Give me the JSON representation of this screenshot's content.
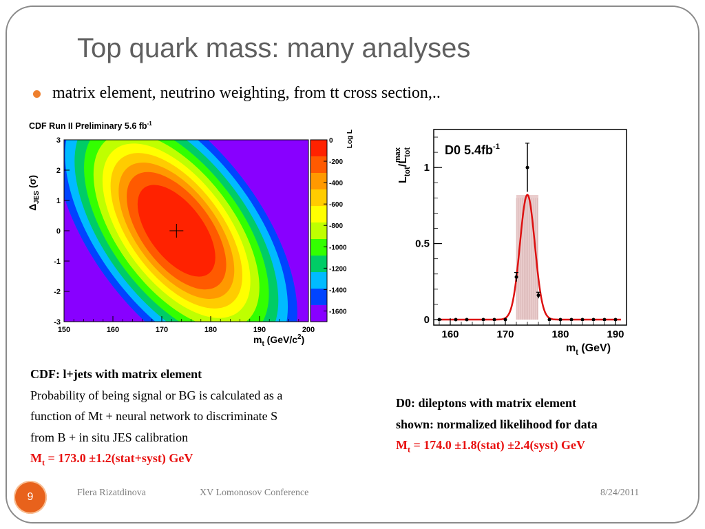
{
  "slide": {
    "title": "Top quark mass: many analyses",
    "bullet": "matrix element, neutrino weighting, from tt cross section,..",
    "page_number": "9",
    "footer_author": "Flera Rizatdinova",
    "footer_conference": "XV Lomonosov Conference",
    "footer_date": "8/24/2011"
  },
  "cdf": {
    "caption_heading": "CDF: l+jets with matrix element",
    "caption_line1": "Probability of being signal or BG is calculated as a",
    "caption_line2": "function of Mt + neural network to discriminate S",
    "caption_line3": "from B + in situ JES calibration",
    "result_prefix": "M",
    "result_sub": "t",
    "result_rest": " = 173.0 ±1.2(stat+syst) GeV"
  },
  "d0": {
    "caption_line1": "D0: dileptons with matrix element",
    "caption_line2": "shown: normalized likelihood for data",
    "result_prefix": "M",
    "result_sub": "t",
    "result_rest": " = 174.0 ±1.8(stat) ±2.4(syst) GeV"
  },
  "chart_data": [
    {
      "type": "heatmap",
      "title": "CDF Run II Preliminary 5.6 fb",
      "title_sup": "-1",
      "xlabel_main": "m",
      "xlabel_sub": "t",
      "xlabel_rest": " (GeV/c",
      "xlabel_sup": "2",
      "xlabel_end": ")",
      "ylabel_main": "Δ",
      "ylabel_sub": "JES",
      "ylabel_rest": " (σ)",
      "xlim": [
        150,
        200
      ],
      "ylim": [
        -3,
        3
      ],
      "x_ticks": [
        "150",
        "160",
        "170",
        "180",
        "190",
        "200"
      ],
      "y_ticks": [
        "-3",
        "-2",
        "-1",
        "0",
        "1",
        "2",
        "3"
      ],
      "colorbar_label": "Log L",
      "colorbar_range": [
        -1700,
        0
      ],
      "colorbar_ticks": [
        "0",
        "-200",
        "-400",
        "-600",
        "-800",
        "-1000",
        "-1200",
        "-1400",
        "-1600"
      ],
      "marker": {
        "x": 173.0,
        "y": 0.0
      },
      "colors": {
        "red": "#ff2200",
        "orange_red": "#ff5a00",
        "orange": "#ff9900",
        "yellow_orange": "#ffcc00",
        "yellow": "#ffff00",
        "lime": "#bfff00",
        "green": "#33ff00",
        "teal": "#00cc66",
        "cyan": "#00bbff",
        "blue": "#0044ff",
        "violet": "#8800ff"
      }
    },
    {
      "type": "line",
      "title": "D0 5.4fb",
      "title_sup": "-1",
      "xlabel_main": "m",
      "xlabel_sub": "t",
      "xlabel_rest": " (GeV)",
      "ylabel_main": "L",
      "ylabel_sub1": "tot",
      "ylabel_mid": "/L",
      "ylabel_sub2": "tot",
      "ylabel_sup": "max",
      "xlim": [
        157,
        192
      ],
      "ylim": [
        0,
        1.25
      ],
      "x_ticks": [
        "160",
        "170",
        "180",
        "190"
      ],
      "y_ticks": [
        "0",
        "0.5",
        "1"
      ],
      "points": {
        "x": [
          158,
          161,
          163,
          166,
          168,
          170,
          172,
          174,
          176,
          178,
          180,
          182,
          184,
          186,
          188,
          190
        ],
        "y": [
          0,
          0,
          0,
          0,
          0,
          0,
          0.28,
          1.0,
          0.16,
          0,
          0,
          0,
          0,
          0,
          0,
          0
        ],
        "err": [
          0,
          0,
          0,
          0,
          0,
          0,
          0.03,
          0.16,
          0.02,
          0,
          0,
          0,
          0,
          0,
          0,
          0
        ]
      },
      "fit": {
        "mean": 174.0,
        "sigma": 1.35,
        "amplitude": 0.82
      },
      "band": [
        172.0,
        176.0
      ],
      "colors": {
        "fit": "#dd1111",
        "band": "#e8c8c8",
        "points": "#000000"
      }
    }
  ]
}
